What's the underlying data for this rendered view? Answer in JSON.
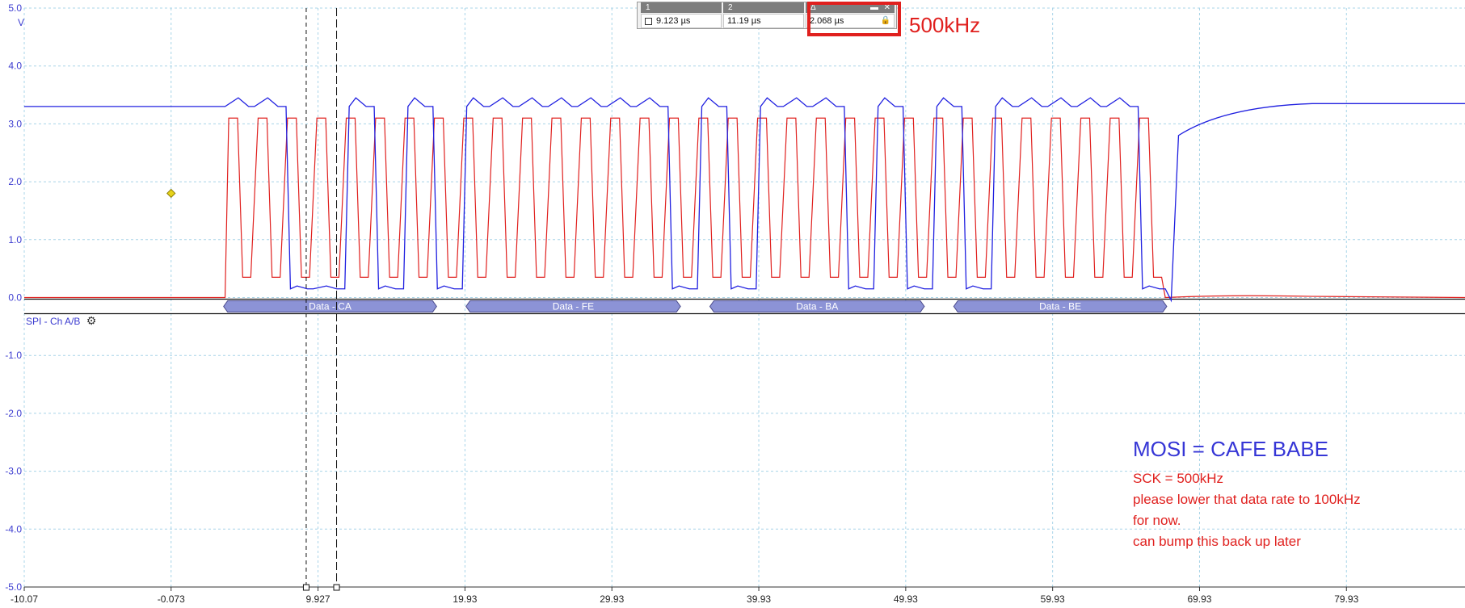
{
  "chart_data": {
    "type": "line",
    "y_unit": "V",
    "y_ticks": [
      "5.0",
      "4.0",
      "3.0",
      "2.0",
      "1.0",
      "0.0",
      "-1.0",
      "-2.0",
      "-3.0",
      "-4.0",
      "-5.0"
    ],
    "ylim": [
      -5.0,
      5.0
    ],
    "x_ticks": [
      "-10.07",
      "-0.073",
      "9.927",
      "19.93",
      "29.93",
      "39.93",
      "49.93",
      "59.93",
      "69.93",
      "79.93"
    ],
    "xlim": [
      -10.07,
      88
    ],
    "grid": true,
    "series": [
      {
        "color": "#e0201e",
        "description_role": "SCK",
        "idle_low": 0.0,
        "high": 3.1,
        "low": 0.35,
        "burst_start_x": 3.6,
        "period_x": 2.0,
        "pulses": 32,
        "decay_tail_end": 0.05
      },
      {
        "color": "#2020e0",
        "description_role": "MOSI",
        "idle_high": 3.3,
        "byte_values": [
          "CA",
          "FE",
          "BA",
          "BE"
        ]
      }
    ],
    "cursors": [
      {
        "label": "1",
        "x": 9.123
      },
      {
        "label": "2",
        "x": 11.19
      }
    ],
    "trigger_marker": {
      "x": -0.073,
      "y": 1.8
    },
    "decoder": {
      "name": "SPI - Ch A/B",
      "packets": [
        {
          "label": "Data - CA",
          "x_start": 3.5,
          "x_end": 18.0
        },
        {
          "label": "Data - FE",
          "x_start": 20.0,
          "x_end": 34.6
        },
        {
          "label": "Data - BA",
          "x_start": 36.6,
          "x_end": 51.2
        },
        {
          "label": "Data - BE",
          "x_start": 53.2,
          "x_end": 67.7
        }
      ]
    }
  },
  "readout": {
    "col1_header": "1",
    "col1_value": "9.123 µs",
    "col2_header": "2",
    "col2_value": "11.19 µs",
    "delta_header": "Δ",
    "delta_value": "2.068 µs"
  },
  "annotations": {
    "freq_label": "500kHz",
    "title": "MOSI = CAFE BABE",
    "line1": "SCK = 500kHz",
    "line2": "please lower that data rate to 100kHz",
    "line3": "for now.",
    "line4": "can bump this back up later"
  },
  "colors": {
    "sck": "#e0201e",
    "mosi": "#2020e0",
    "decoder_fill": "#8c93d6",
    "grid": "#a8d4e8"
  }
}
